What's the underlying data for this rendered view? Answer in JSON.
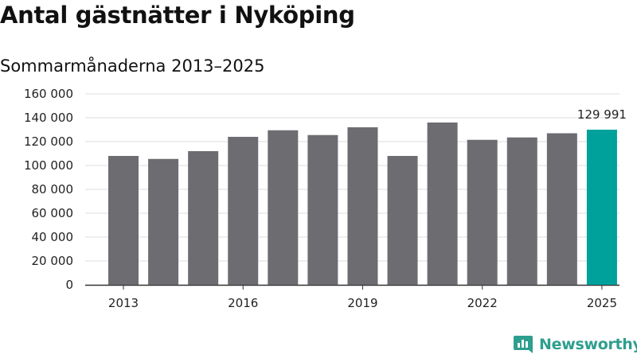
{
  "title": "Antal gästnätter i Nyköping",
  "subtitle": "Sommarmånaderna 2013–2025",
  "brand": {
    "name": "Newsworthy",
    "icon": "bar-chart-logo-icon",
    "color": "#2e9e8e"
  },
  "colors": {
    "bar": "#6d6c71",
    "highlight": "#00a19b",
    "grid": "#dddddd",
    "axis": "#333333"
  },
  "chart_data": {
    "type": "bar",
    "categories": [
      "2013",
      "2014",
      "2015",
      "2016",
      "2017",
      "2018",
      "2019",
      "2020",
      "2021",
      "2022",
      "2023",
      "2024",
      "2025"
    ],
    "values": [
      108000,
      105500,
      112000,
      124000,
      129500,
      125500,
      132000,
      108000,
      136000,
      121500,
      123500,
      127000,
      129991
    ],
    "highlight_index": 12,
    "annotation": {
      "index": 12,
      "label": "129 991"
    },
    "x_tick_labels": [
      "2013",
      "2016",
      "2019",
      "2022",
      "2025"
    ],
    "x_tick_indices": [
      0,
      3,
      6,
      9,
      12
    ],
    "y_ticks": [
      0,
      20000,
      40000,
      60000,
      80000,
      100000,
      120000,
      140000,
      160000
    ],
    "y_tick_labels": [
      "0",
      "20 000",
      "40 000",
      "60 000",
      "80 000",
      "100 000",
      "120 000",
      "140 000",
      "160 000"
    ],
    "ylim": [
      0,
      160000
    ],
    "grid": true,
    "legend": "none"
  }
}
